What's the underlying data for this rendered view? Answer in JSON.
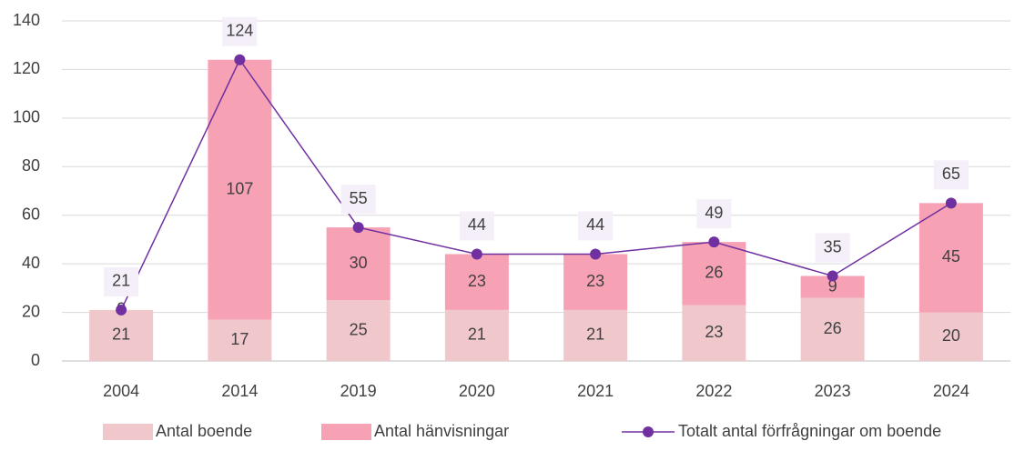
{
  "chart_data": {
    "type": "bar",
    "stacked": true,
    "categories": [
      "2004",
      "2014",
      "2019",
      "2020",
      "2021",
      "2022",
      "2023",
      "2024"
    ],
    "series": [
      {
        "name": "Antal boende",
        "type": "bar",
        "color": "#f0c8cc",
        "values": [
          21,
          17,
          25,
          21,
          21,
          23,
          26,
          20
        ]
      },
      {
        "name": "Antal hänvisningar",
        "type": "bar",
        "color": "#f7a1b5",
        "values": [
          0,
          107,
          30,
          23,
          23,
          26,
          9,
          45
        ]
      },
      {
        "name": "Totalt antal förfrågningar om boende",
        "type": "line",
        "color": "#7030a0",
        "values": [
          21,
          124,
          55,
          44,
          44,
          49,
          35,
          65
        ]
      }
    ],
    "ylim": [
      0,
      140
    ],
    "yticks": [
      0,
      20,
      40,
      60,
      80,
      100,
      120,
      140
    ],
    "grid": true,
    "legend": "bottom"
  }
}
